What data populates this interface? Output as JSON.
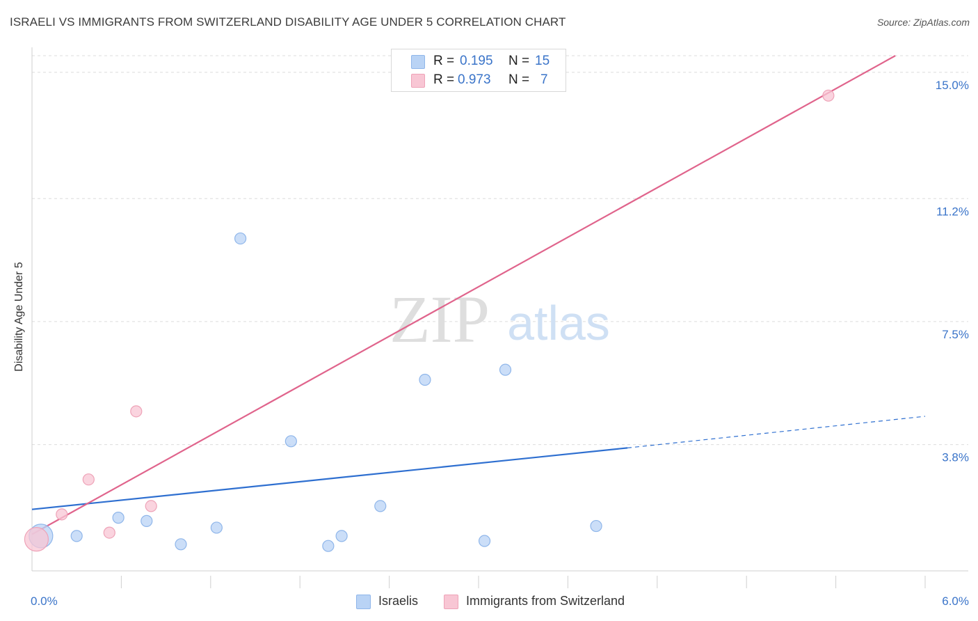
{
  "title": "ISRAELI VS IMMIGRANTS FROM SWITZERLAND DISABILITY AGE UNDER 5 CORRELATION CHART",
  "source": "Source: ZipAtlas.com",
  "watermark": {
    "zip": "ZIP",
    "atlas": "atlas"
  },
  "legend": {
    "r_label": "R =",
    "n_label": "N =",
    "rows": [
      {
        "r": "0.195",
        "n": "15"
      },
      {
        "r": "0.973",
        "n": "7"
      }
    ]
  },
  "colors": {
    "israelis_fill": "#b9d3f5",
    "israelis_stroke": "#8fb6ea",
    "israelis_line": "#2e6fd0",
    "swiss_fill": "#f8c6d4",
    "swiss_stroke": "#eea2b7",
    "swiss_line": "#e0648c",
    "tick_label": "#3a74c9",
    "grid": "#dcdcdc"
  },
  "chart_data": {
    "type": "scatter",
    "title": "ISRAELI VS IMMIGRANTS FROM SWITZERLAND DISABILITY AGE UNDER 5 CORRELATION CHART",
    "xlabel": "",
    "ylabel": "Disability Age Under 5",
    "xlim": [
      0,
      6
    ],
    "ylim": [
      0,
      15.5
    ],
    "x_tick_labels": [
      {
        "value": 0,
        "label": "0.0%"
      },
      {
        "value": 6,
        "label": "6.0%"
      }
    ],
    "y_tick_labels": [
      {
        "value": 3.8,
        "label": "3.8%"
      },
      {
        "value": 7.5,
        "label": "7.5%"
      },
      {
        "value": 11.2,
        "label": "11.2%"
      },
      {
        "value": 15.0,
        "label": "15.0%"
      }
    ],
    "series": [
      {
        "name": "Israelis",
        "points": [
          {
            "x": 0.06,
            "y": 1.05,
            "size": "large"
          },
          {
            "x": 0.3,
            "y": 1.05
          },
          {
            "x": 0.58,
            "y": 1.6
          },
          {
            "x": 0.77,
            "y": 1.5
          },
          {
            "x": 1.0,
            "y": 0.8
          },
          {
            "x": 1.24,
            "y": 1.3
          },
          {
            "x": 1.4,
            "y": 10.0
          },
          {
            "x": 1.74,
            "y": 3.9
          },
          {
            "x": 1.99,
            "y": 0.75
          },
          {
            "x": 2.08,
            "y": 1.05
          },
          {
            "x": 2.34,
            "y": 1.95
          },
          {
            "x": 2.64,
            "y": 5.75
          },
          {
            "x": 3.04,
            "y": 0.9
          },
          {
            "x": 3.18,
            "y": 6.05
          },
          {
            "x": 3.79,
            "y": 1.35
          }
        ],
        "trend": {
          "x0": 0,
          "y0": 1.85,
          "x1": 4.0,
          "y1": 3.7,
          "dashed_to_x": 6.0,
          "dashed_to_y": 4.65
        }
      },
      {
        "name": "Immigrants from Switzerland",
        "points": [
          {
            "x": 0.03,
            "y": 0.95,
            "size": "large"
          },
          {
            "x": 0.2,
            "y": 1.7
          },
          {
            "x": 0.38,
            "y": 2.75
          },
          {
            "x": 0.52,
            "y": 1.15
          },
          {
            "x": 0.7,
            "y": 4.8
          },
          {
            "x": 0.8,
            "y": 1.95
          },
          {
            "x": 5.35,
            "y": 14.3
          }
        ],
        "trend": {
          "x0": 0,
          "y0": 1.1,
          "x1": 5.8,
          "y1": 15.5
        }
      }
    ]
  }
}
